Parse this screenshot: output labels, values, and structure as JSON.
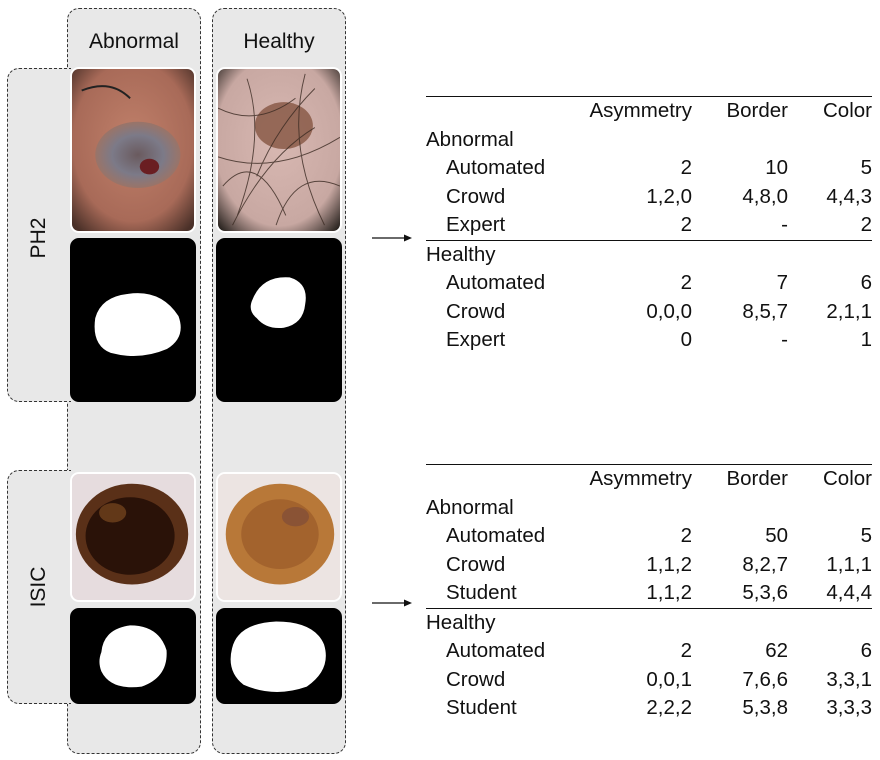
{
  "columns": [
    "Abnormal",
    "Healthy"
  ],
  "datasets": [
    {
      "name": "PH2",
      "table": {
        "headers": [
          "",
          "Asymmetry",
          "Border",
          "Color"
        ],
        "groups": [
          {
            "label": "Abnormal",
            "rows": [
              {
                "label": "Automated",
                "asymmetry": "2",
                "border": "10",
                "color": "5"
              },
              {
                "label": "Crowd",
                "asymmetry": "1,2,0",
                "border": "4,8,0",
                "color": "4,4,3"
              },
              {
                "label": "Expert",
                "asymmetry": "2",
                "border": "-",
                "color": "2"
              }
            ]
          },
          {
            "label": "Healthy",
            "rows": [
              {
                "label": "Automated",
                "asymmetry": "2",
                "border": "7",
                "color": "6"
              },
              {
                "label": "Crowd",
                "asymmetry": "0,0,0",
                "border": "8,5,7",
                "color": "2,1,1"
              },
              {
                "label": "Expert",
                "asymmetry": "0",
                "border": "-",
                "color": "1"
              }
            ]
          }
        ]
      }
    },
    {
      "name": "ISIC",
      "table": {
        "headers": [
          "",
          "Asymmetry",
          "Border",
          "Color"
        ],
        "groups": [
          {
            "label": "Abnormal",
            "rows": [
              {
                "label": "Automated",
                "asymmetry": "2",
                "border": "50",
                "color": "5"
              },
              {
                "label": "Crowd",
                "asymmetry": "1,1,2",
                "border": "8,2,7",
                "color": "1,1,1"
              },
              {
                "label": "Student",
                "asymmetry": "1,1,2",
                "border": "5,3,6",
                "color": "4,4,4"
              }
            ]
          },
          {
            "label": "Healthy",
            "rows": [
              {
                "label": "Automated",
                "asymmetry": "2",
                "border": "62",
                "color": "6"
              },
              {
                "label": "Crowd",
                "asymmetry": "0,0,1",
                "border": "7,6,6",
                "color": "3,3,1"
              },
              {
                "label": "Student",
                "asymmetry": "2,2,2",
                "border": "5,3,8",
                "color": "3,3,3"
              }
            ]
          }
        ]
      }
    }
  ],
  "colors": {
    "panel_fill": "#e8e8e8",
    "dash": "#333333",
    "mask_bg": "#000000",
    "mask_fg": "#ffffff"
  }
}
